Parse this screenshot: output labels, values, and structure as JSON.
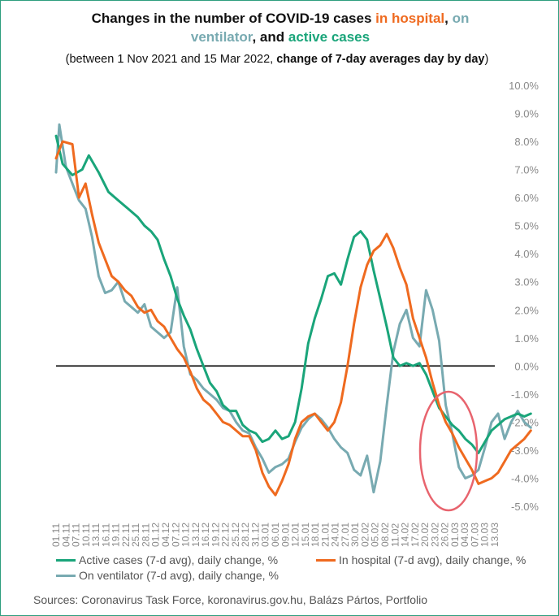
{
  "title": {
    "part1": "Changes in the number of COVID-19 cases ",
    "hosp": "in hospital",
    "sep1": ", ",
    "vent_a": "on",
    "vent_b": "ventilator",
    "sep2": ", and ",
    "active": "active cases"
  },
  "subtitle": {
    "part1": "(between 1 Nov 2021 and 15 Mar 2022, ",
    "bold": "change of 7-day averages day by day",
    "part2": ")"
  },
  "source": "Sources: Coronavirus Task Force, koronavirus.gov.hu, Balázs Pártos, Portfolio",
  "colors": {
    "active": "#1aa57a",
    "hospital": "#ef6a1f",
    "ventilator": "#78aab1",
    "zero_line": "#000000",
    "highlight": "#e8646e"
  },
  "chart_data": {
    "type": "line",
    "ylim": [
      -5,
      10
    ],
    "ytick_labels": [
      "10.0%",
      "9.0%",
      "8.0%",
      "7.0%",
      "6.0%",
      "5.0%",
      "4.0%",
      "3.0%",
      "2.0%",
      "1.0%",
      "0.0%",
      "-1.0%",
      "-2.0%",
      "-3.0%",
      "-4.0%",
      "-5.0%"
    ],
    "x_labels": [
      "01.11",
      "04.11",
      "07.11",
      "10.11",
      "13.11",
      "16.11",
      "19.11",
      "22.11",
      "25.11",
      "28.11",
      "01.12",
      "04.12",
      "07.12",
      "10.12",
      "13.12",
      "16.12",
      "19.12",
      "22.12",
      "25.12",
      "28.12",
      "31.12",
      "03.01",
      "06.01",
      "09.01",
      "12.01",
      "15.01",
      "18.01",
      "21.01",
      "24.01",
      "27.01",
      "30.01",
      "02.02",
      "05.02",
      "08.02",
      "11.02",
      "14.02",
      "17.02",
      "20.02",
      "23.02",
      "26.02",
      "01.03",
      "04.03",
      "07.03",
      "10.03",
      "13.03"
    ],
    "x_count": 135,
    "legend": [
      "Active cases (7-d avg), daily change, %",
      "In hospital (7-d avg), daily change, %",
      "On ventilator (7-d avg), daily change, %"
    ],
    "annotation": "highlight circle around 22.02–07.03",
    "series": [
      {
        "name": "Active cases (7-d avg), daily change, %",
        "key": "active",
        "points": [
          [
            0,
            8.2
          ],
          [
            2,
            7.2
          ],
          [
            5,
            6.8
          ],
          [
            8,
            7.0
          ],
          [
            10,
            7.5
          ],
          [
            13,
            6.9
          ],
          [
            16,
            6.2
          ],
          [
            19,
            5.9
          ],
          [
            22,
            5.6
          ],
          [
            25,
            5.3
          ],
          [
            27,
            5.0
          ],
          [
            29,
            4.8
          ],
          [
            31,
            4.5
          ],
          [
            33,
            3.8
          ],
          [
            35,
            3.2
          ],
          [
            37,
            2.4
          ],
          [
            39,
            1.8
          ],
          [
            41,
            1.3
          ],
          [
            43,
            0.6
          ],
          [
            45,
            0.0
          ],
          [
            47,
            -0.6
          ],
          [
            49,
            -0.9
          ],
          [
            51,
            -1.4
          ],
          [
            53,
            -1.6
          ],
          [
            55,
            -1.6
          ],
          [
            57,
            -2.1
          ],
          [
            59,
            -2.3
          ],
          [
            61,
            -2.4
          ],
          [
            63,
            -2.7
          ],
          [
            65,
            -2.6
          ],
          [
            67,
            -2.3
          ],
          [
            69,
            -2.6
          ],
          [
            71,
            -2.5
          ],
          [
            73,
            -2.0
          ],
          [
            75,
            -0.8
          ],
          [
            77,
            0.8
          ],
          [
            79,
            1.7
          ],
          [
            81,
            2.4
          ],
          [
            83,
            3.2
          ],
          [
            85,
            3.3
          ],
          [
            87,
            2.9
          ],
          [
            89,
            3.8
          ],
          [
            91,
            4.6
          ],
          [
            93,
            4.8
          ],
          [
            95,
            4.5
          ],
          [
            97,
            3.4
          ],
          [
            99,
            2.4
          ],
          [
            101,
            1.4
          ],
          [
            103,
            0.3
          ],
          [
            105,
            0.0
          ],
          [
            107,
            0.1
          ],
          [
            109,
            0.0
          ],
          [
            111,
            0.1
          ],
          [
            113,
            -0.3
          ],
          [
            115,
            -0.9
          ],
          [
            117,
            -1.5
          ],
          [
            119,
            -1.8
          ],
          [
            121,
            -2.1
          ],
          [
            123,
            -2.3
          ],
          [
            125,
            -2.6
          ],
          [
            127,
            -2.8
          ],
          [
            129,
            -3.1
          ],
          [
            131,
            -2.7
          ],
          [
            133,
            -2.3
          ],
          [
            135,
            -2.1
          ],
          [
            137,
            -1.9
          ],
          [
            139,
            -1.8
          ],
          [
            141,
            -1.7
          ],
          [
            143,
            -1.8
          ],
          [
            145,
            -1.7
          ]
        ]
      },
      {
        "name": "In hospital (7-d avg), daily change, %",
        "key": "hospital",
        "points": [
          [
            0,
            7.4
          ],
          [
            2,
            8.0
          ],
          [
            5,
            7.9
          ],
          [
            7,
            6.0
          ],
          [
            9,
            6.5
          ],
          [
            11,
            5.4
          ],
          [
            13,
            4.4
          ],
          [
            15,
            3.8
          ],
          [
            17,
            3.2
          ],
          [
            19,
            3.0
          ],
          [
            21,
            2.7
          ],
          [
            23,
            2.5
          ],
          [
            25,
            2.1
          ],
          [
            27,
            1.9
          ],
          [
            29,
            2.0
          ],
          [
            31,
            1.6
          ],
          [
            33,
            1.4
          ],
          [
            35,
            1.0
          ],
          [
            37,
            0.6
          ],
          [
            39,
            0.3
          ],
          [
            41,
            -0.2
          ],
          [
            43,
            -0.8
          ],
          [
            45,
            -1.2
          ],
          [
            47,
            -1.4
          ],
          [
            49,
            -1.7
          ],
          [
            51,
            -2.0
          ],
          [
            53,
            -2.1
          ],
          [
            55,
            -2.3
          ],
          [
            57,
            -2.5
          ],
          [
            59,
            -2.5
          ],
          [
            61,
            -3.0
          ],
          [
            63,
            -3.8
          ],
          [
            65,
            -4.3
          ],
          [
            67,
            -4.6
          ],
          [
            69,
            -4.1
          ],
          [
            71,
            -3.5
          ],
          [
            73,
            -2.6
          ],
          [
            75,
            -2.0
          ],
          [
            77,
            -1.8
          ],
          [
            79,
            -1.7
          ],
          [
            81,
            -2.0
          ],
          [
            83,
            -2.3
          ],
          [
            85,
            -2.0
          ],
          [
            87,
            -1.3
          ],
          [
            89,
            0.0
          ],
          [
            91,
            1.5
          ],
          [
            93,
            2.8
          ],
          [
            95,
            3.6
          ],
          [
            97,
            4.1
          ],
          [
            99,
            4.3
          ],
          [
            101,
            4.7
          ],
          [
            103,
            4.2
          ],
          [
            105,
            3.5
          ],
          [
            107,
            2.9
          ],
          [
            109,
            1.7
          ],
          [
            111,
            1.0
          ],
          [
            113,
            0.3
          ],
          [
            115,
            -0.6
          ],
          [
            117,
            -1.4
          ],
          [
            119,
            -2.0
          ],
          [
            121,
            -2.4
          ],
          [
            123,
            -2.9
          ],
          [
            125,
            -3.3
          ],
          [
            127,
            -3.7
          ],
          [
            129,
            -4.2
          ],
          [
            131,
            -4.1
          ],
          [
            133,
            -4.0
          ],
          [
            135,
            -3.8
          ],
          [
            137,
            -3.4
          ],
          [
            139,
            -3.0
          ],
          [
            141,
            -2.8
          ],
          [
            143,
            -2.6
          ],
          [
            145,
            -2.3
          ]
        ]
      },
      {
        "name": "On ventilator (7-d avg), daily change, %",
        "key": "ventilator",
        "points": [
          [
            0,
            6.9
          ],
          [
            1,
            8.6
          ],
          [
            3,
            7.1
          ],
          [
            5,
            6.5
          ],
          [
            7,
            5.9
          ],
          [
            9,
            5.6
          ],
          [
            11,
            4.6
          ],
          [
            13,
            3.2
          ],
          [
            15,
            2.6
          ],
          [
            17,
            2.7
          ],
          [
            19,
            3.0
          ],
          [
            21,
            2.3
          ],
          [
            23,
            2.1
          ],
          [
            25,
            1.9
          ],
          [
            27,
            2.2
          ],
          [
            29,
            1.4
          ],
          [
            31,
            1.2
          ],
          [
            33,
            1.0
          ],
          [
            35,
            1.2
          ],
          [
            37,
            2.8
          ],
          [
            39,
            0.7
          ],
          [
            41,
            -0.3
          ],
          [
            43,
            -0.5
          ],
          [
            45,
            -0.8
          ],
          [
            47,
            -1.0
          ],
          [
            49,
            -1.2
          ],
          [
            51,
            -1.5
          ],
          [
            53,
            -1.6
          ],
          [
            55,
            -2.0
          ],
          [
            57,
            -2.3
          ],
          [
            59,
            -2.4
          ],
          [
            61,
            -2.9
          ],
          [
            63,
            -3.3
          ],
          [
            65,
            -3.8
          ],
          [
            67,
            -3.6
          ],
          [
            69,
            -3.5
          ],
          [
            71,
            -3.3
          ],
          [
            73,
            -2.7
          ],
          [
            75,
            -2.2
          ],
          [
            77,
            -1.9
          ],
          [
            79,
            -1.7
          ],
          [
            81,
            -1.9
          ],
          [
            83,
            -2.2
          ],
          [
            85,
            -2.6
          ],
          [
            87,
            -2.9
          ],
          [
            89,
            -3.1
          ],
          [
            91,
            -3.7
          ],
          [
            93,
            -3.9
          ],
          [
            95,
            -3.2
          ],
          [
            97,
            -4.5
          ],
          [
            99,
            -3.4
          ],
          [
            101,
            -1.4
          ],
          [
            103,
            0.5
          ],
          [
            105,
            1.5
          ],
          [
            107,
            2.0
          ],
          [
            109,
            1.0
          ],
          [
            111,
            0.7
          ],
          [
            113,
            2.7
          ],
          [
            115,
            2.0
          ],
          [
            117,
            0.9
          ],
          [
            119,
            -1.4
          ],
          [
            121,
            -2.4
          ],
          [
            123,
            -3.6
          ],
          [
            125,
            -4.0
          ],
          [
            127,
            -3.9
          ],
          [
            129,
            -3.7
          ],
          [
            131,
            -2.9
          ],
          [
            133,
            -2.0
          ],
          [
            135,
            -1.7
          ],
          [
            137,
            -2.6
          ],
          [
            139,
            -2.0
          ],
          [
            141,
            -1.6
          ],
          [
            143,
            -2.0
          ],
          [
            145,
            -2.2
          ]
        ]
      }
    ]
  }
}
